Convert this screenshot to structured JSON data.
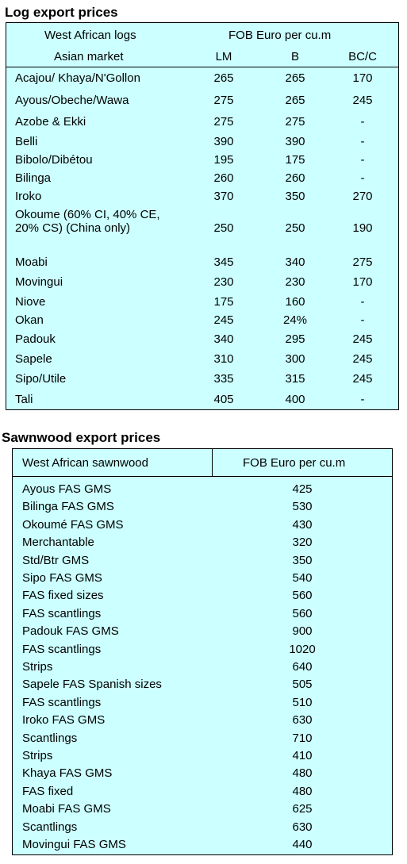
{
  "log_section": {
    "title": "Log export prices",
    "header": {
      "col1_line1": "West African logs",
      "col1_line2": "Asian market",
      "group": "FOB Euro per cu.m",
      "lm": "LM",
      "b": "B",
      "bcc": "BC/C"
    },
    "rows": [
      {
        "name": "Acajou/ Khaya/N'Gollon",
        "lm": "265",
        "b": "265",
        "bcc": "170"
      },
      {
        "name": "Ayous/Obeche/Wawa",
        "lm": "275",
        "b": "265",
        "bcc": "245"
      },
      {
        "name": "Azobe & Ekki",
        "lm": "275",
        "b": "275",
        "bcc": "-"
      },
      {
        "name": "Belli",
        "lm": "390",
        "b": "390",
        "bcc": "-"
      },
      {
        "name": "Bibolo/Dibétou",
        "lm": "195",
        "b": "175",
        "bcc": "-"
      },
      {
        "name": "Bilinga",
        "lm": "260",
        "b": "260",
        "bcc": "-"
      },
      {
        "name": "Iroko",
        "lm": "370",
        "b": "350",
        "bcc": "270"
      },
      {
        "name": "Okoume (60% CI, 40% CE, 20% CS) (China only)",
        "lm": "250",
        "b": "250",
        "bcc": "190"
      },
      {
        "name": "Moabi",
        "lm": "345",
        "b": "340",
        "bcc": "275"
      },
      {
        "name": "Movingui",
        "lm": "230",
        "b": "230",
        "bcc": "170"
      },
      {
        "name": "Niove",
        "lm": "175",
        "b": "160",
        "bcc": "-"
      },
      {
        "name": "Okan",
        "lm": "245",
        "b": "24%",
        "bcc": "-"
      },
      {
        "name": "Padouk",
        "lm": "340",
        "b": "295",
        "bcc": "245"
      },
      {
        "name": "Sapele",
        "lm": "310",
        "b": "300",
        "bcc": "245"
      },
      {
        "name": "Sipo/Utile",
        "lm": "335",
        "b": "315",
        "bcc": "245"
      },
      {
        "name": "Tali",
        "lm": "405",
        "b": "400",
        "bcc": "-"
      }
    ]
  },
  "sawn_section": {
    "title": "Sawnwood export prices",
    "header": {
      "col1": "West African sawnwood",
      "col2": "FOB Euro per cu.m"
    },
    "rows": [
      {
        "name": "Ayous FAS GMS",
        "price": "425"
      },
      {
        "name": "Bilinga FAS GMS",
        "price": "530"
      },
      {
        "name": "Okoumé FAS GMS",
        "price": "430"
      },
      {
        "name": "Merchantable",
        "price": "320"
      },
      {
        "name": "Std/Btr GMS",
        "price": "350"
      },
      {
        "name": "Sipo FAS GMS",
        "price": "540"
      },
      {
        "name": "FAS fixed sizes",
        "price": "560"
      },
      {
        "name": "FAS scantlings",
        "price": "560"
      },
      {
        "name": "Padouk FAS GMS",
        "price": "900"
      },
      {
        "name": "FAS scantlings",
        "price": "1020"
      },
      {
        "name": "Strips",
        "price": "640"
      },
      {
        "name": "Sapele FAS Spanish sizes",
        "price": "505"
      },
      {
        "name": "FAS scantlings",
        "price": "510"
      },
      {
        "name": "Iroko FAS GMS",
        "price": "630"
      },
      {
        "name": "Scantlings",
        "price": "710"
      },
      {
        "name": "Strips",
        "price": "410"
      },
      {
        "name": "Khaya FAS GMS",
        "price": "480"
      },
      {
        "name": "FAS fixed",
        "price": "480"
      },
      {
        "name": "Moabi FAS GMS",
        "price": "625"
      },
      {
        "name": "Scantlings",
        "price": "630"
      },
      {
        "name": "Movingui FAS GMS",
        "price": "440"
      }
    ]
  }
}
